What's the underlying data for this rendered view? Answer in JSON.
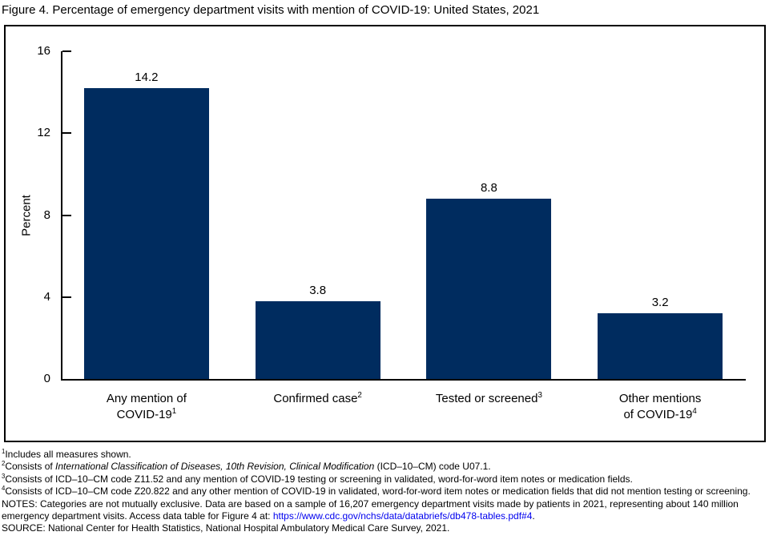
{
  "title": "Figure 4. Percentage of emergency department visits with mention of COVID-19: United States, 2021",
  "colors": {
    "bar": "#002c5f",
    "axis": "#000000",
    "link": "#0000ee",
    "text": "#000000"
  },
  "chart_data": {
    "type": "bar",
    "title": "Figure 4. Percentage of emergency department visits with mention of COVID-19: United States, 2021",
    "xlabel": "",
    "ylabel": "Percent",
    "ylim": [
      0,
      16
    ],
    "yticks": [
      0,
      4,
      8,
      12,
      16
    ],
    "grid": false,
    "legend": false,
    "bar_color": "#002c5f",
    "categories": [
      {
        "lines": [
          "Any mention of",
          "COVID-19"
        ],
        "sup": "1"
      },
      {
        "lines": [
          "Confirmed case"
        ],
        "sup": "2"
      },
      {
        "lines": [
          "Tested or screened"
        ],
        "sup": "3"
      },
      {
        "lines": [
          "Other mentions",
          "of COVID-19"
        ],
        "sup": "4"
      }
    ],
    "values": [
      14.2,
      3.8,
      8.8,
      3.2
    ],
    "value_labels": [
      "14.2",
      "3.8",
      "8.8",
      "3.2"
    ]
  },
  "footnotes": [
    {
      "sup": "1",
      "segments": [
        {
          "text": "Includes all measures shown."
        }
      ]
    },
    {
      "sup": "2",
      "segments": [
        {
          "text": "Consists of "
        },
        {
          "text": "International Classification of Diseases, 10th Revision, Clinical Modification",
          "style": "italic"
        },
        {
          "text": " (ICD–10–CM) code U07.1."
        }
      ]
    },
    {
      "sup": "3",
      "segments": [
        {
          "text": "Consists of ICD–10–CM code Z11.52 and any mention of COVID-19 testing or screening in validated, word-for-word item notes or medication fields."
        }
      ]
    },
    {
      "sup": "4",
      "segments": [
        {
          "text": "Consists of ICD–10–CM code Z20.822 and any other mention of COVID-19 in validated, word-for-word item notes or medication fields that did not mention testing or screening."
        }
      ]
    },
    {
      "segments": [
        {
          "text": "NOTES: Categories are not mutually exclusive. Data are based on a sample of 16,207 emergency department  visits made by patients in 2021, representing about 140 million emergency department visits. Access data table for Figure 4 at: "
        },
        {
          "text": "https://www.cdc.gov/nchs/data/databriefs/db478-tables.pdf#4",
          "style": "link"
        },
        {
          "text": "."
        }
      ]
    },
    {
      "segments": [
        {
          "text": "SOURCE: National Center for Health Statistics, National Hospital Ambulatory Medical Care Survey, 2021."
        }
      ]
    }
  ]
}
